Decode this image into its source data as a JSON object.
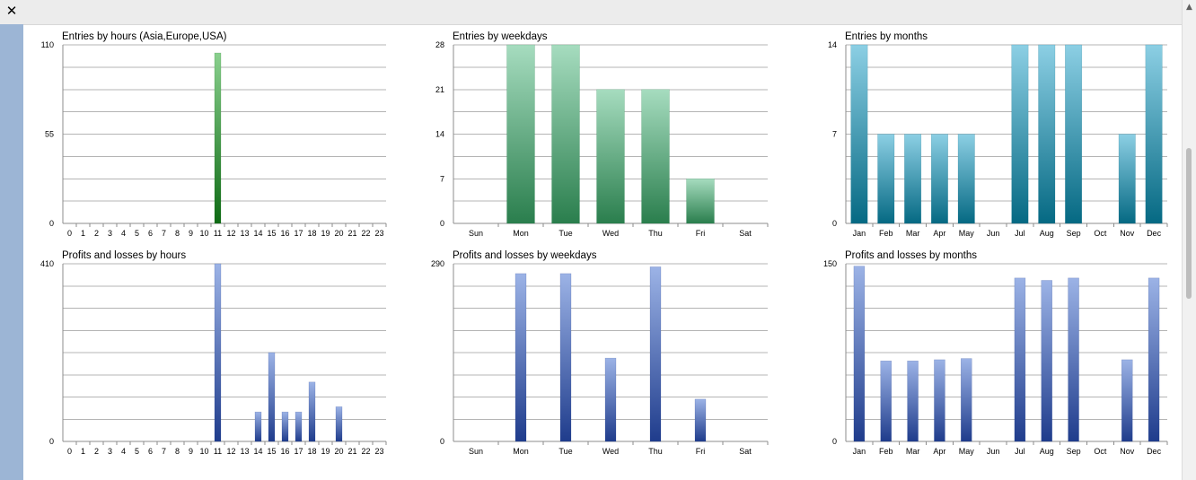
{
  "window": {
    "close_label": "✕",
    "scroll_up_label": "▲"
  },
  "colors": {
    "green": [
      "#8ad08e",
      "#0e6a14"
    ],
    "mint": [
      "#a6dcbf",
      "#2a7e4d"
    ],
    "teal": [
      "#8ccfe4",
      "#056983"
    ],
    "blue": [
      "#9cb3e6",
      "#1f3c8c"
    ]
  },
  "chart_data": [
    {
      "type": "bar",
      "title": "Entries by hours (Asia,Europe,USA)",
      "categories": [
        "0",
        "1",
        "2",
        "3",
        "4",
        "5",
        "6",
        "7",
        "8",
        "9",
        "10",
        "11",
        "12",
        "13",
        "14",
        "15",
        "16",
        "17",
        "18",
        "19",
        "20",
        "21",
        "22",
        "23"
      ],
      "values": [
        0,
        0,
        0,
        0,
        0,
        0,
        0,
        0,
        0,
        0,
        0,
        105,
        0,
        0,
        0,
        0,
        0,
        0,
        0,
        0,
        0,
        0,
        0,
        0
      ],
      "ylim": [
        0,
        110
      ],
      "yticks": [
        "0",
        "55",
        "110"
      ],
      "gridlines": 8,
      "bar_width": "thin",
      "color": "green"
    },
    {
      "type": "bar",
      "title": "Entries by weekdays",
      "categories": [
        "Sun",
        "Mon",
        "Tue",
        "Wed",
        "Thu",
        "Fri",
        "Sat"
      ],
      "values": [
        0,
        28,
        28,
        21,
        21,
        7,
        0
      ],
      "ylim": [
        0,
        28
      ],
      "yticks": [
        "0",
        "7",
        "14",
        "21",
        "28"
      ],
      "gridlines": 8,
      "bar_width": "wide",
      "color": "mint"
    },
    {
      "type": "bar",
      "title": "Entries by months",
      "categories": [
        "Jan",
        "Feb",
        "Mar",
        "Apr",
        "May",
        "Jun",
        "Jul",
        "Aug",
        "Sep",
        "Oct",
        "Nov",
        "Dec"
      ],
      "values": [
        14,
        7,
        7,
        7,
        7,
        0,
        14,
        14,
        14,
        0,
        7,
        14
      ],
      "ylim": [
        0,
        14
      ],
      "yticks": [
        "0",
        "7",
        "14"
      ],
      "gridlines": 8,
      "bar_width": "wide",
      "color": "teal"
    },
    {
      "type": "bar",
      "title": "Profits and losses by hours",
      "categories": [
        "0",
        "1",
        "2",
        "3",
        "4",
        "5",
        "6",
        "7",
        "8",
        "9",
        "10",
        "11",
        "12",
        "13",
        "14",
        "15",
        "16",
        "17",
        "18",
        "19",
        "20",
        "21",
        "22",
        "23"
      ],
      "values": [
        0,
        0,
        0,
        0,
        0,
        0,
        0,
        0,
        0,
        0,
        0,
        410,
        0,
        0,
        68,
        205,
        68,
        68,
        137,
        0,
        80,
        0,
        0,
        0
      ],
      "ylim": [
        0,
        410
      ],
      "yticks": [
        "0",
        "410"
      ],
      "gridlines": 8,
      "bar_width": "thin",
      "color": "blue"
    },
    {
      "type": "bar",
      "title": "Profits and losses by weekdays",
      "categories": [
        "Sun",
        "Mon",
        "Tue",
        "Wed",
        "Thu",
        "Fri",
        "Sat"
      ],
      "values": [
        0,
        274,
        274,
        136,
        285,
        69,
        0
      ],
      "ylim": [
        0,
        290
      ],
      "yticks": [
        "0",
        "290"
      ],
      "gridlines": 8,
      "bar_width": "thin",
      "color": "blue"
    },
    {
      "type": "bar",
      "title": "Profits and losses by months",
      "categories": [
        "Jan",
        "Feb",
        "Mar",
        "Apr",
        "May",
        "Jun",
        "Jul",
        "Aug",
        "Sep",
        "Oct",
        "Nov",
        "Dec"
      ],
      "values": [
        148,
        68,
        68,
        69,
        70,
        0,
        138,
        136,
        138,
        0,
        69,
        138
      ],
      "ylim": [
        0,
        150
      ],
      "yticks": [
        "0",
        "150"
      ],
      "gridlines": 8,
      "bar_width": "thin",
      "color": "blue"
    }
  ]
}
